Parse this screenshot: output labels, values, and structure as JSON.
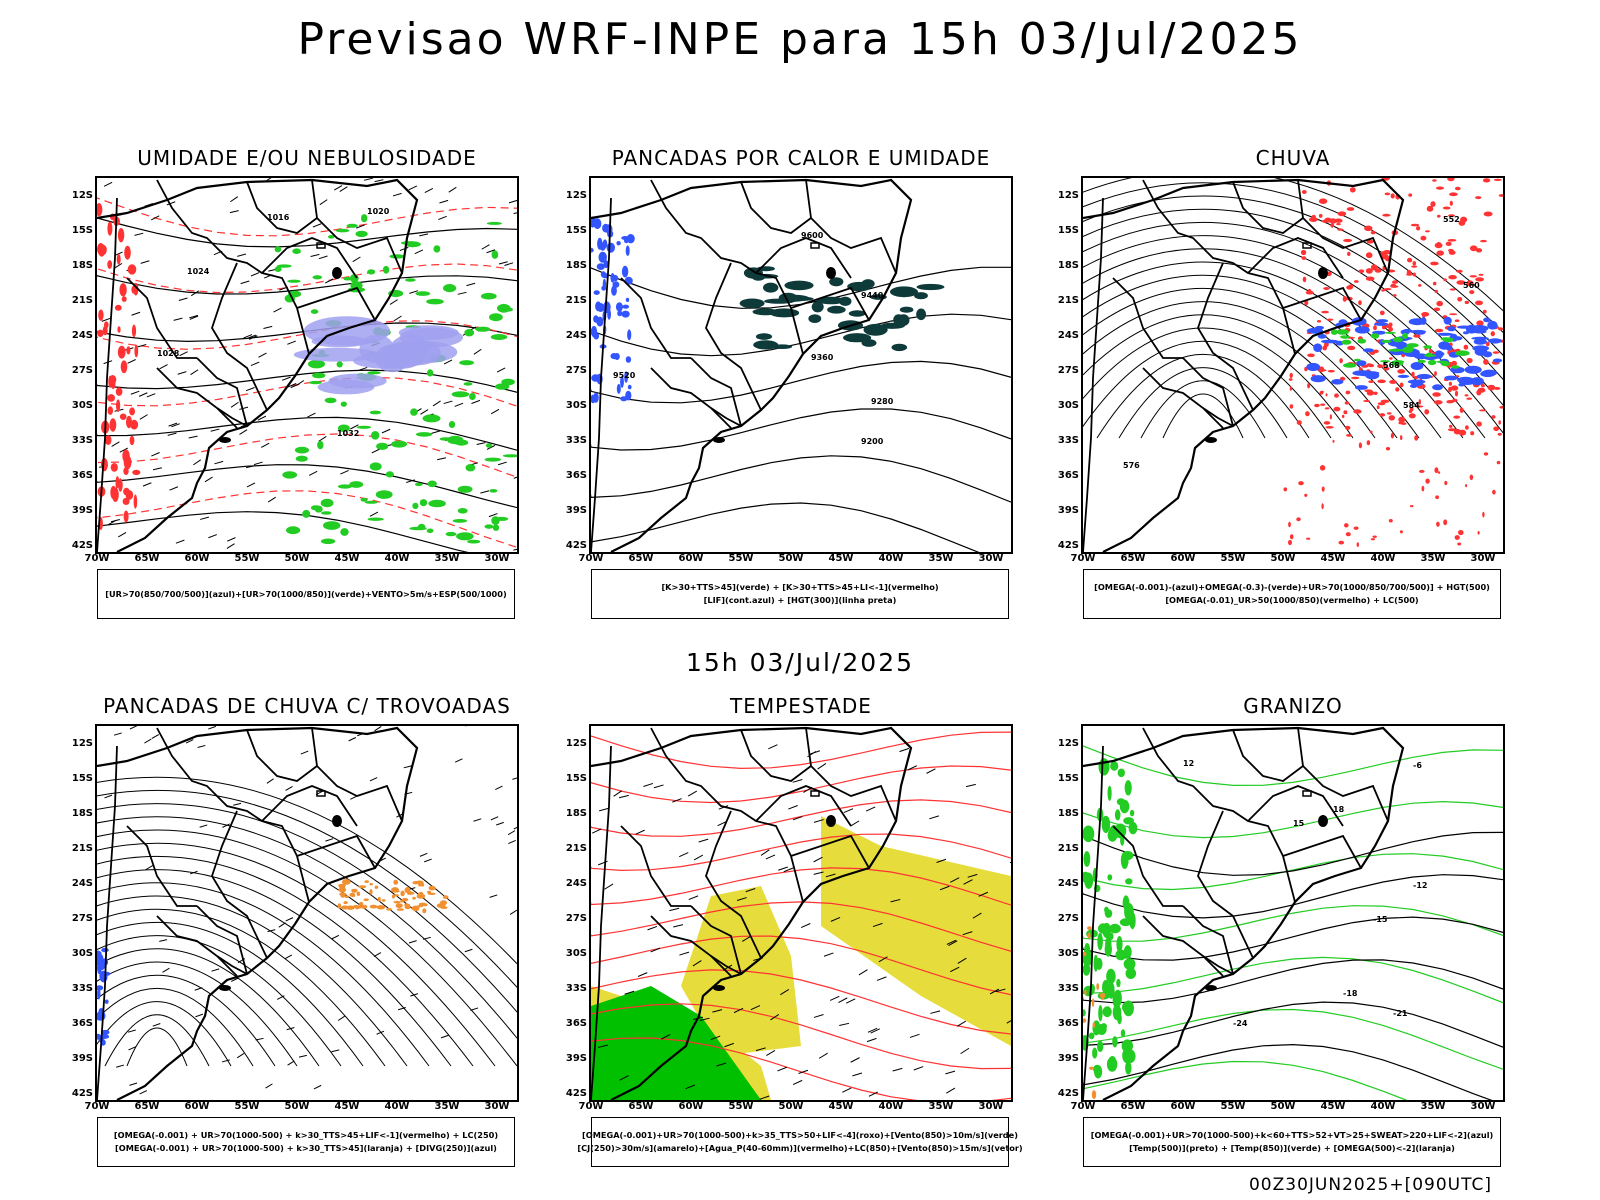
{
  "header": {
    "title": "Previsao WRF-INPE  para 15h 03/Jul/2025",
    "mid_title": "15h 03/Jul/2025",
    "footer": "00Z30JUN2025+[090UTC]"
  },
  "axes": {
    "lat_labels": [
      "12S",
      "15S",
      "18S",
      "21S",
      "24S",
      "27S",
      "30S",
      "33S",
      "36S",
      "39S",
      "42S"
    ],
    "lon_labels": [
      "70W",
      "65W",
      "60W",
      "55W",
      "50W",
      "45W",
      "40W",
      "35W",
      "30W"
    ]
  },
  "panels": [
    {
      "title": "UMIDADE E/OU NEBULOSIDADE",
      "legend": [
        "[UR>70(850/700/500)](azul)+[UR>70(1000/850)](verde)+VENTO>5m/s+ESP(500/1000)"
      ],
      "contour_labels": [
        "1016",
        "1020",
        "1024",
        "1028",
        "1032"
      ]
    },
    {
      "title": "PANCADAS POR CALOR E UMIDADE",
      "legend": [
        "[K>30+TTS>45](verde) + [K>30+TTS>45+LI<-1](vermelho)",
        "[LIF](cont.azul) + [HGT(300)](linha preta)"
      ],
      "contour_labels": [
        "9600",
        "9520",
        "9440",
        "9360",
        "9280",
        "9200"
      ]
    },
    {
      "title": "CHUVA",
      "legend": [
        "[OMEGA(-0.001)-(azul)+OMEGA(-0.3)-(verde)+UR>70(1000/850/700/500)] + HGT(500)",
        "[OMEGA(-0.01)_UR>50(1000/850)(vermelho) + LC(500)"
      ],
      "contour_labels": [
        "552",
        "560",
        "568",
        "576",
        "584"
      ]
    },
    {
      "title": "PANCADAS DE CHUVA C/ TROVOADAS",
      "legend": [
        "[OMEGA(-0.001) + UR>70(1000-500) + k>30_TTS>45+LIF<-1](vermelho) + LC(250)",
        "[OMEGA(-0.001) + UR>70(1000-500) + k>30_TTS>45](laranja) + [DIVG(250)](azul)"
      ],
      "contour_labels": []
    },
    {
      "title": "TEMPESTADE",
      "legend": [
        "[OMEGA(-0.001)+UR>70(1000-500)+k>35_TTS>50+LIF<-4](roxo)+[Vento(850)>10m/s](verde)",
        "[CJ(250)>30m/s](amarelo)+[Agua_P(40-60mm)](vermelho)+LC(850)+[Vento(850)>15m/s](vetor)"
      ],
      "contour_labels": []
    },
    {
      "title": "GRANIZO",
      "legend": [
        "[OMEGA(-0.001)+UR>70(1000-500)+k<60+TTS>52+VT>25+SWEAT>220+LIF<-2](azul)",
        "[Temp(500)](preto) + [Temp(850)](verde) + [OMEGA(500)<-2](laranja)"
      ],
      "contour_labels": [
        "-6",
        "-12",
        "-15",
        "-18",
        "-21",
        "-24",
        "12",
        "15",
        "18"
      ]
    }
  ],
  "colors": {
    "border": "#000000",
    "red": "#ff3333",
    "green": "#22cc22",
    "blue": "#3355ff",
    "lavender": "#a0a0f0",
    "darkteal": "#0e3a3a",
    "orange": "#f09030",
    "yellow": "#e6dc3c",
    "brightgreen": "#00c000"
  }
}
